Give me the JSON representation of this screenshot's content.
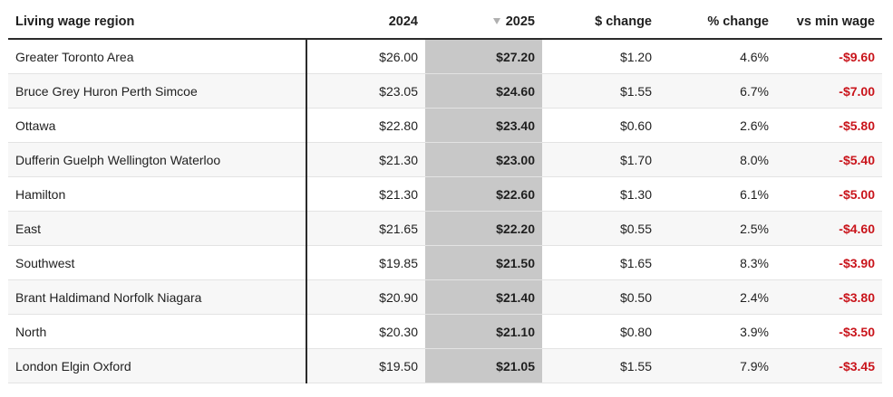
{
  "chart_data": {
    "type": "table",
    "columns": [
      "Living wage region",
      "2024",
      "2025",
      "$ change",
      "% change",
      "vs min wage"
    ],
    "sorted_column": "2025",
    "sort_direction": "descending",
    "rows": [
      [
        "Greater Toronto Area",
        "$26.00",
        "$27.20",
        "$1.20",
        "4.6%",
        "-$9.60"
      ],
      [
        "Bruce Grey Huron Perth Simcoe",
        "$23.05",
        "$24.60",
        "$1.55",
        "6.7%",
        "-$7.00"
      ],
      [
        "Ottawa",
        "$22.80",
        "$23.40",
        "$0.60",
        "2.6%",
        "-$5.80"
      ],
      [
        "Dufferin Guelph Wellington Waterloo",
        "$21.30",
        "$23.00",
        "$1.70",
        "8.0%",
        "-$5.40"
      ],
      [
        "Hamilton",
        "$21.30",
        "$22.60",
        "$1.30",
        "6.1%",
        "-$5.00"
      ],
      [
        "East",
        "$21.65",
        "$22.20",
        "$0.55",
        "2.5%",
        "-$4.60"
      ],
      [
        "Southwest",
        "$19.85",
        "$21.50",
        "$1.65",
        "8.3%",
        "-$3.90"
      ],
      [
        "Brant Haldimand Norfolk Niagara",
        "$20.90",
        "$21.40",
        "$0.50",
        "2.4%",
        "-$3.80"
      ],
      [
        "North",
        "$20.30",
        "$21.10",
        "$0.80",
        "3.9%",
        "-$3.50"
      ],
      [
        "London Elgin Oxford",
        "$19.50",
        "$21.05",
        "$1.55",
        "7.9%",
        "-$3.45"
      ]
    ],
    "colors": {
      "sorted_column_bg": "#c8c8c8",
      "alt_row_bg": "#f7f7f7",
      "negative_text": "#c9141b",
      "rule": "#2b2b2b"
    }
  }
}
